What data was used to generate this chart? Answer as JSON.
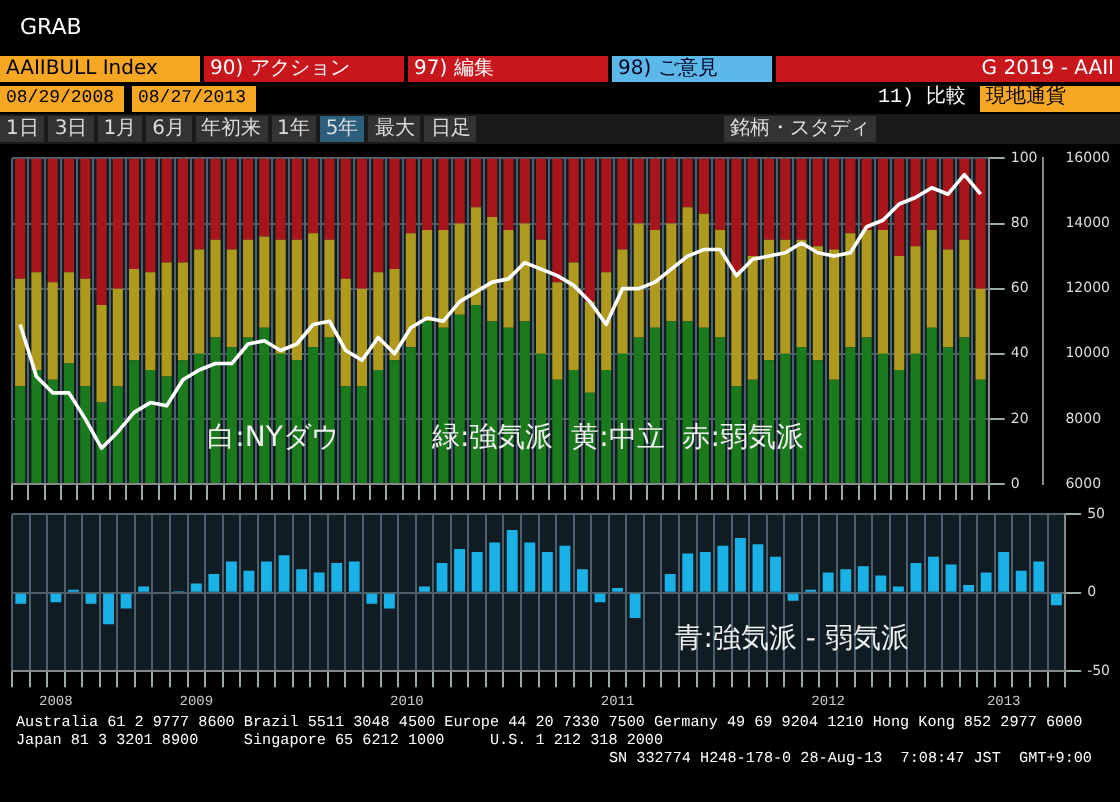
{
  "chart_data": [
    {
      "type": "bar",
      "title": "GRAB",
      "stacked": true,
      "grid": true,
      "legend": false,
      "categories": [
        null,
        null,
        null,
        null,
        null,
        null,
        null,
        null,
        null,
        null,
        null,
        null,
        null,
        null,
        null,
        null,
        null,
        null,
        null,
        null,
        null,
        null,
        null,
        null,
        null,
        null,
        null,
        null,
        null,
        null,
        null,
        null,
        null,
        null,
        null,
        null,
        null,
        null,
        null,
        null,
        null,
        null,
        null,
        null,
        null,
        null,
        null,
        null,
        null,
        null,
        null,
        null,
        null,
        null,
        null,
        null,
        null,
        null,
        null,
        null
      ],
      "series": [
        {
          "color": "#1b7a1b",
          "values": [
            30,
            35,
            32,
            37,
            30,
            25,
            30,
            38,
            35,
            33,
            38,
            40,
            45,
            42,
            45,
            48,
            40,
            38,
            42,
            45,
            30,
            30,
            35,
            38,
            42,
            50,
            48,
            52,
            55,
            50,
            48,
            50,
            40,
            32,
            35,
            28,
            35,
            40,
            45,
            48,
            50,
            50,
            48,
            45,
            30,
            32,
            38,
            40,
            42,
            38,
            32,
            42,
            45,
            40,
            35,
            40,
            48,
            42,
            45,
            32
          ]
        },
        {
          "color": "#b09a1e",
          "values": [
            33,
            30,
            30,
            28,
            33,
            30,
            30,
            28,
            30,
            35,
            30,
            32,
            30,
            30,
            30,
            28,
            35,
            37,
            35,
            30,
            33,
            30,
            30,
            28,
            35,
            28,
            30,
            28,
            30,
            32,
            30,
            30,
            35,
            30,
            33,
            28,
            30,
            32,
            35,
            30,
            30,
            35,
            35,
            33,
            35,
            38,
            37,
            35,
            33,
            35,
            40,
            35,
            33,
            38,
            35,
            33,
            30,
            30,
            30,
            28
          ]
        },
        {
          "color": "#a8161b",
          "values": [
            37,
            35,
            38,
            35,
            37,
            45,
            40,
            34,
            35,
            32,
            32,
            28,
            25,
            28,
            25,
            24,
            25,
            25,
            23,
            25,
            37,
            40,
            35,
            34,
            23,
            22,
            22,
            20,
            15,
            18,
            22,
            20,
            25,
            38,
            32,
            44,
            35,
            28,
            20,
            22,
            20,
            15,
            17,
            22,
            35,
            30,
            25,
            25,
            25,
            27,
            28,
            23,
            22,
            22,
            30,
            27,
            22,
            28,
            25,
            40
          ]
        },
        {
          "type": "line",
          "axis": "y2",
          "color": "#ffffff",
          "values": [
            10900,
            9300,
            8800,
            8800,
            8000,
            7100,
            7600,
            8200,
            8500,
            8400,
            9200,
            9500,
            9700,
            9700,
            10300,
            10400,
            10100,
            10300,
            10900,
            11000,
            10100,
            9800,
            10500,
            10000,
            10800,
            11100,
            11000,
            11600,
            11900,
            12200,
            12300,
            12800,
            12600,
            12400,
            12100,
            11600,
            10900,
            12000,
            12000,
            12200,
            12600,
            13000,
            13200,
            13200,
            12400,
            12900,
            13000,
            13100,
            13400,
            13100,
            13000,
            13100,
            13900,
            14100,
            14600,
            14800,
            15100,
            14900,
            15500,
            14900
          ]
        }
      ],
      "ylim": [
        0,
        100
      ],
      "yticks": [
        0,
        20,
        40,
        60,
        80,
        100
      ],
      "y2lim": [
        6000,
        16000
      ],
      "y2ticks": [
        6000,
        8000,
        10000,
        12000,
        14000,
        16000
      ],
      "annotations": [
        "白:NYダウ",
        "緑:強気派  黄:中立  赤:弱気派",
        "AAIIBULL Index",
        "90) アクション",
        "97) 編集",
        "98) ご意見",
        "G 2019 - AAII",
        "08/29/2008",
        "08/27/2013",
        "11) 比較",
        "現地通貨",
        "1日",
        "3日",
        "1月",
        "6月",
        "年初来",
        "1年",
        "5年",
        "最大",
        "日足",
        "銘柄・スタディ"
      ]
    },
    {
      "type": "bar",
      "grid": true,
      "legend": false,
      "categories": [
        null,
        null,
        "2008",
        null,
        null,
        null,
        null,
        null,
        null,
        null,
        "2009",
        null,
        null,
        null,
        null,
        null,
        null,
        null,
        null,
        null,
        null,
        null,
        "2010",
        null,
        null,
        null,
        null,
        null,
        null,
        null,
        null,
        null,
        null,
        null,
        "2011",
        null,
        null,
        null,
        null,
        null,
        null,
        null,
        null,
        null,
        null,
        null,
        "2012",
        null,
        null,
        null,
        null,
        null,
        null,
        null,
        null,
        null,
        "2013",
        null,
        null,
        null
      ],
      "series": [
        {
          "color": "#1ab2e6",
          "values": [
            -7,
            0,
            -6,
            2,
            -7,
            -20,
            -10,
            4,
            0,
            1,
            6,
            12,
            20,
            14,
            20,
            24,
            15,
            13,
            19,
            20,
            -7,
            -10,
            0,
            4,
            19,
            28,
            26,
            32,
            40,
            32,
            26,
            30,
            15,
            -6,
            3,
            -16,
            0,
            12,
            25,
            26,
            30,
            35,
            31,
            23,
            -5,
            2,
            13,
            15,
            17,
            11,
            4,
            19,
            23,
            18,
            5,
            13,
            26,
            14,
            20,
            -8
          ]
        }
      ],
      "ylim": [
        -50,
        50
      ],
      "yticks": [
        -50,
        0,
        50
      ],
      "annotations": [
        "青:強気派 - 弱気派",
        "Australia 61 2 9777 8600 Brazil 5511 3048 4500 Europe 44 20 7330 7500 Germany 49 69 9204 1210 Hong Kong 852 2977 6000",
        "Japan 81 3 3201 8900     Singapore 65 6212 1000     U.S. 1 212 318 2000",
        "SN 332774 H248-178-0 28-Aug-13  7:08:47 JST  GMT+9:00"
      ]
    }
  ]
}
